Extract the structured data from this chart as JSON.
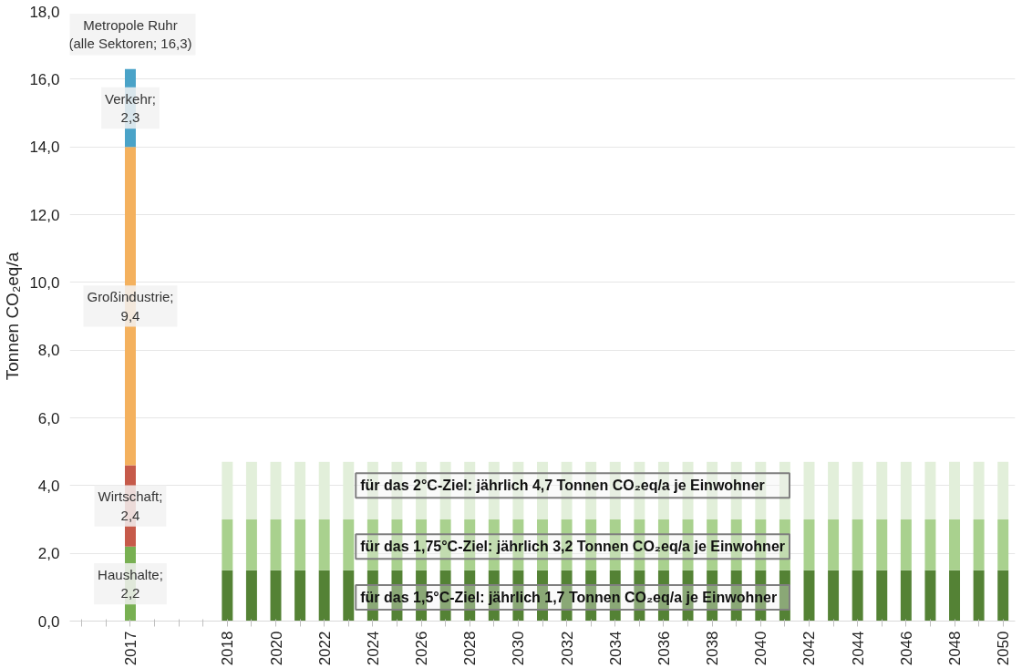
{
  "chart_data": {
    "type": "bar",
    "stacked": true,
    "ylabel": "Tonnen CO₂eq/a",
    "categories": [
      null,
      null,
      "2017",
      null,
      null,
      null,
      "2018",
      null,
      "2020",
      null,
      "2022",
      null,
      "2024",
      null,
      "2026",
      null,
      "2028",
      null,
      "2030",
      null,
      "2032",
      null,
      "2034",
      null,
      "2036",
      null,
      "2038",
      null,
      "2040",
      null,
      "2042",
      null,
      "2044",
      null,
      "2046",
      null,
      "2048",
      null,
      "2050"
    ],
    "series": [
      {
        "color": "#78b052",
        "values": [
          null,
          null,
          2.2,
          null,
          null,
          null,
          null,
          null,
          null,
          null,
          null,
          null,
          null,
          null,
          null,
          null,
          null,
          null,
          null,
          null,
          null,
          null,
          null,
          null,
          null,
          null,
          null,
          null,
          null,
          null,
          null,
          null,
          null,
          null,
          null,
          null,
          null,
          null,
          null
        ],
        "value_labels": [
          null,
          null,
          "Haushalte;\n2,2",
          null,
          null,
          null,
          null,
          null,
          null,
          null,
          null,
          null,
          null,
          null,
          null,
          null,
          null,
          null,
          null,
          null,
          null,
          null,
          null,
          null,
          null,
          null,
          null,
          null,
          null,
          null,
          null,
          null,
          null,
          null,
          null,
          null,
          null,
          null,
          null
        ]
      },
      {
        "color": "#c65a4a",
        "values": [
          null,
          null,
          2.4,
          null,
          null,
          null,
          null,
          null,
          null,
          null,
          null,
          null,
          null,
          null,
          null,
          null,
          null,
          null,
          null,
          null,
          null,
          null,
          null,
          null,
          null,
          null,
          null,
          null,
          null,
          null,
          null,
          null,
          null,
          null,
          null,
          null,
          null,
          null,
          null
        ],
        "value_labels": [
          null,
          null,
          "Wirtschaft;\n2,4",
          null,
          null,
          null,
          null,
          null,
          null,
          null,
          null,
          null,
          null,
          null,
          null,
          null,
          null,
          null,
          null,
          null,
          null,
          null,
          null,
          null,
          null,
          null,
          null,
          null,
          null,
          null,
          null,
          null,
          null,
          null,
          null,
          null,
          null,
          null,
          null
        ]
      },
      {
        "color": "#f4b15e",
        "values": [
          null,
          null,
          9.4,
          null,
          null,
          null,
          null,
          null,
          null,
          null,
          null,
          null,
          null,
          null,
          null,
          null,
          null,
          null,
          null,
          null,
          null,
          null,
          null,
          null,
          null,
          null,
          null,
          null,
          null,
          null,
          null,
          null,
          null,
          null,
          null,
          null,
          null,
          null,
          null
        ],
        "value_labels": [
          null,
          null,
          "Großindustrie;\n9,4",
          null,
          null,
          null,
          null,
          null,
          null,
          null,
          null,
          null,
          null,
          null,
          null,
          null,
          null,
          null,
          null,
          null,
          null,
          null,
          null,
          null,
          null,
          null,
          null,
          null,
          null,
          null,
          null,
          null,
          null,
          null,
          null,
          null,
          null,
          null,
          null
        ]
      },
      {
        "color": "#4aa3c8",
        "values": [
          null,
          null,
          2.3,
          null,
          null,
          null,
          null,
          null,
          null,
          null,
          null,
          null,
          null,
          null,
          null,
          null,
          null,
          null,
          null,
          null,
          null,
          null,
          null,
          null,
          null,
          null,
          null,
          null,
          null,
          null,
          null,
          null,
          null,
          null,
          null,
          null,
          null,
          null,
          null
        ],
        "value_labels": [
          null,
          null,
          "Verkehr;\n2,3",
          null,
          null,
          null,
          null,
          null,
          null,
          null,
          null,
          null,
          null,
          null,
          null,
          null,
          null,
          null,
          null,
          null,
          null,
          null,
          null,
          null,
          null,
          null,
          null,
          null,
          null,
          null,
          null,
          null,
          null,
          null,
          null,
          null,
          null,
          null,
          null
        ]
      },
      {
        "color": "#548235",
        "values": [
          null,
          null,
          null,
          null,
          null,
          null,
          1.5,
          1.5,
          1.5,
          1.5,
          1.5,
          1.5,
          1.5,
          1.5,
          1.5,
          1.5,
          1.5,
          1.5,
          1.5,
          1.5,
          1.5,
          1.5,
          1.5,
          1.5,
          1.5,
          1.5,
          1.5,
          1.5,
          1.5,
          1.5,
          1.5,
          1.5,
          1.5,
          1.5,
          1.5,
          1.5,
          1.5,
          1.5,
          1.5
        ]
      },
      {
        "color": "#a9d18e",
        "values": [
          null,
          null,
          null,
          null,
          null,
          null,
          1.5,
          1.5,
          1.5,
          1.5,
          1.5,
          1.5,
          1.5,
          1.5,
          1.5,
          1.5,
          1.5,
          1.5,
          1.5,
          1.5,
          1.5,
          1.5,
          1.5,
          1.5,
          1.5,
          1.5,
          1.5,
          1.5,
          1.5,
          1.5,
          1.5,
          1.5,
          1.5,
          1.5,
          1.5,
          1.5,
          1.5,
          1.5,
          1.5
        ]
      },
      {
        "color": "#e2efda",
        "values": [
          null,
          null,
          null,
          null,
          null,
          null,
          1.7,
          1.7,
          1.7,
          1.7,
          1.7,
          1.7,
          1.7,
          1.7,
          1.7,
          1.7,
          1.7,
          1.7,
          1.7,
          1.7,
          1.7,
          1.7,
          1.7,
          1.7,
          1.7,
          1.7,
          1.7,
          1.7,
          1.7,
          1.7,
          1.7,
          1.7,
          1.7,
          1.7,
          1.7,
          1.7,
          1.7,
          1.7,
          1.7
        ]
      }
    ],
    "totals": [
      null,
      null,
      "Metropole Ruhr\n(alle Sektoren; 16,3)",
      null,
      null,
      null,
      null,
      null,
      null,
      null,
      null,
      null,
      null,
      null,
      null,
      null,
      null,
      null,
      null,
      null,
      null,
      null,
      null,
      null,
      null,
      null,
      null,
      null,
      null,
      null,
      null,
      null,
      null,
      null,
      null,
      null,
      null,
      null,
      null
    ],
    "annotations": [
      "für das 2°C-Ziel:      jährlich 4,7 Tonnen CO₂eq/a je Einwohner",
      "für das 1,75°C-Ziel: jährlich 3,2 Tonnen CO₂eq/a je Einwohner",
      "für das 1,5°C-Ziel:   jährlich 1,7 Tonnen CO₂eq/a je Einwohner"
    ],
    "ylim": [
      0,
      18
    ],
    "yticks": [
      {
        "value": 0,
        "label": "0,0"
      },
      {
        "value": 2,
        "label": "2,0"
      },
      {
        "value": 4,
        "label": "4,0"
      },
      {
        "value": 6,
        "label": "6,0"
      },
      {
        "value": 8,
        "label": "8,0"
      },
      {
        "value": 10,
        "label": "10,0"
      },
      {
        "value": 12,
        "label": "12,0"
      },
      {
        "value": 14,
        "label": "14,0"
      },
      {
        "value": 16,
        "label": "16,0"
      },
      {
        "value": 18,
        "label": "18,0"
      }
    ],
    "grid": "y"
  }
}
